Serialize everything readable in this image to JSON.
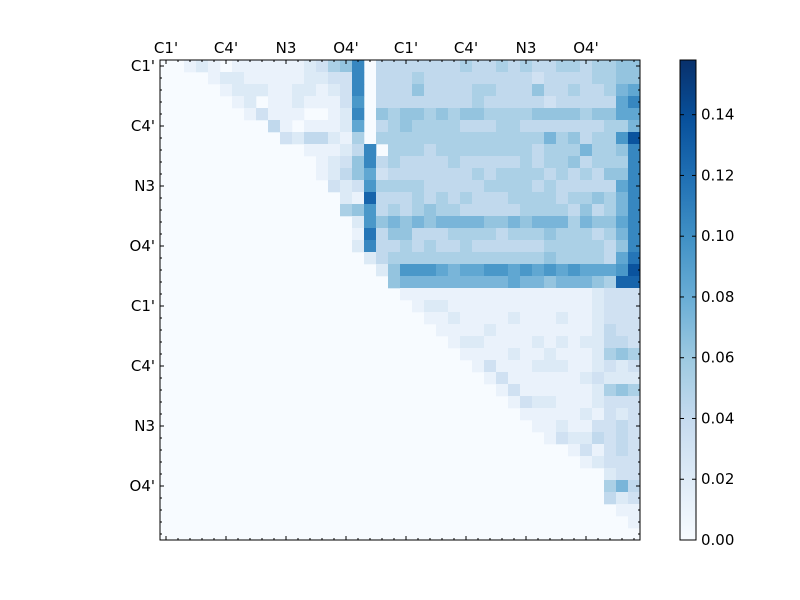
{
  "chart_data": {
    "type": "heatmap",
    "title": "",
    "xlabel": "",
    "ylabel": "",
    "n": 40,
    "x_tick_labels": [
      "C1'",
      "C4'",
      "N3",
      "O4'",
      "C1'",
      "C4'",
      "N3",
      "O4'"
    ],
    "y_tick_labels": [
      "C1'",
      "C4'",
      "N3",
      "O4'",
      "C1'",
      "C4'",
      "N3",
      "O4'"
    ],
    "label_tick_indices": [
      0,
      5,
      10,
      15,
      20,
      25,
      30,
      35
    ],
    "colorbar": {
      "min": 0.0,
      "max": 0.158,
      "ticks": [
        0.0,
        0.02,
        0.04,
        0.06,
        0.08,
        0.1,
        0.12,
        0.14
      ],
      "tick_labels": [
        "0.00",
        "0.02",
        "0.04",
        "0.06",
        "0.08",
        "0.10",
        "0.12",
        "0.14"
      ],
      "colors": [
        "#f7fbff",
        "#deebf7",
        "#c6dbef",
        "#9ecae1",
        "#6baed6",
        "#4292c6",
        "#2171b5",
        "#08519c",
        "#08306b"
      ]
    },
    "rows": [
      "0012101111112356a04444444544545445545566",
      "0000122111112233a04445444444444344445566",
      "0000012221122123a04446444455444644544578",
      "000000120112111390444444445444443444448a",
      "0000000131110012a06566565665555666656688",
      "0000000004101112804565555444554444444557",
      "000000000032442150555555555555557564559d",
      "00000000000011124a055545555555545557556a",
      "00000000000001236a454444544444545564555a",
      "000000000000012468344444445455554545466a",
      "000000000000003239555544444555545444448a",
      "00000000000000021c444545454445555455657a",
      "000000000000000569454565544444555546457a",
      "000000000000000029676767777667677757668a",
      "00000000000000001b466444555545556555457a",
      "00000000000000002a445454454444445555546a",
      "000000000000000002455555555555556555548b",
      "000000000000000000269998788998989898889d",
      "00000000000000000006777777777877677765cc",
      "0000000000000000000011111111111111112333",
      "0000000000000000000001221111111111112333",
      "0000000000000000000000112111121112112333",
      "0000000000000000000000011112111111112433",
      "0000000000000000000000001221111212122443",
      "0000000000000000000000000111121121112565",
      "0000000000000000000000000013111222112323",
      "0000000000000000000000000001311111123222",
      "0000000000000000000000000000131111112565",
      "0000000000000000000000000000013221112333",
      "0000000000000000000000000000001111121323",
      "0000000000000000000000000000000112113343",
      "0000000000000000000000000000000013224343",
      "0000000000000000000000000000000000131343",
      "0000000000000000000000000000000000012333",
      "0000000000000000000000000000000000000233",
      "0000000000000000000000000000000000000574",
      "0000000000000000000000000000000000000423",
      "0000000000000000000000000000000000000011",
      "0000000000000000000000000000000000000001",
      "0000000000000000000000000000000000000000"
    ]
  }
}
